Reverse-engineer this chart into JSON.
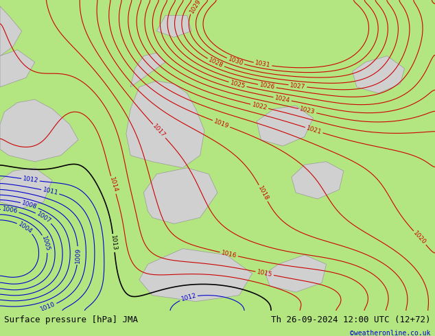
{
  "title_left": "Surface pressure [hPa] JMA",
  "title_right": "Th 26-09-2024 12:00 UTC (12+72)",
  "credit": "©weatheronline.co.uk",
  "bg_color": "#b3e680",
  "land_color": "#d0d0d0",
  "land_edge_color": "#999999",
  "red_contour_color": "#cc0000",
  "blue_contour_color": "#0000cc",
  "black_contour_color": "#000000",
  "bottom_bar_color": "#ffffff",
  "label_fontsize": 6.5,
  "bottom_fontsize": 9,
  "credit_color": "#0000cc",
  "xlim": [
    0,
    100
  ],
  "ylim": [
    0,
    100
  ]
}
